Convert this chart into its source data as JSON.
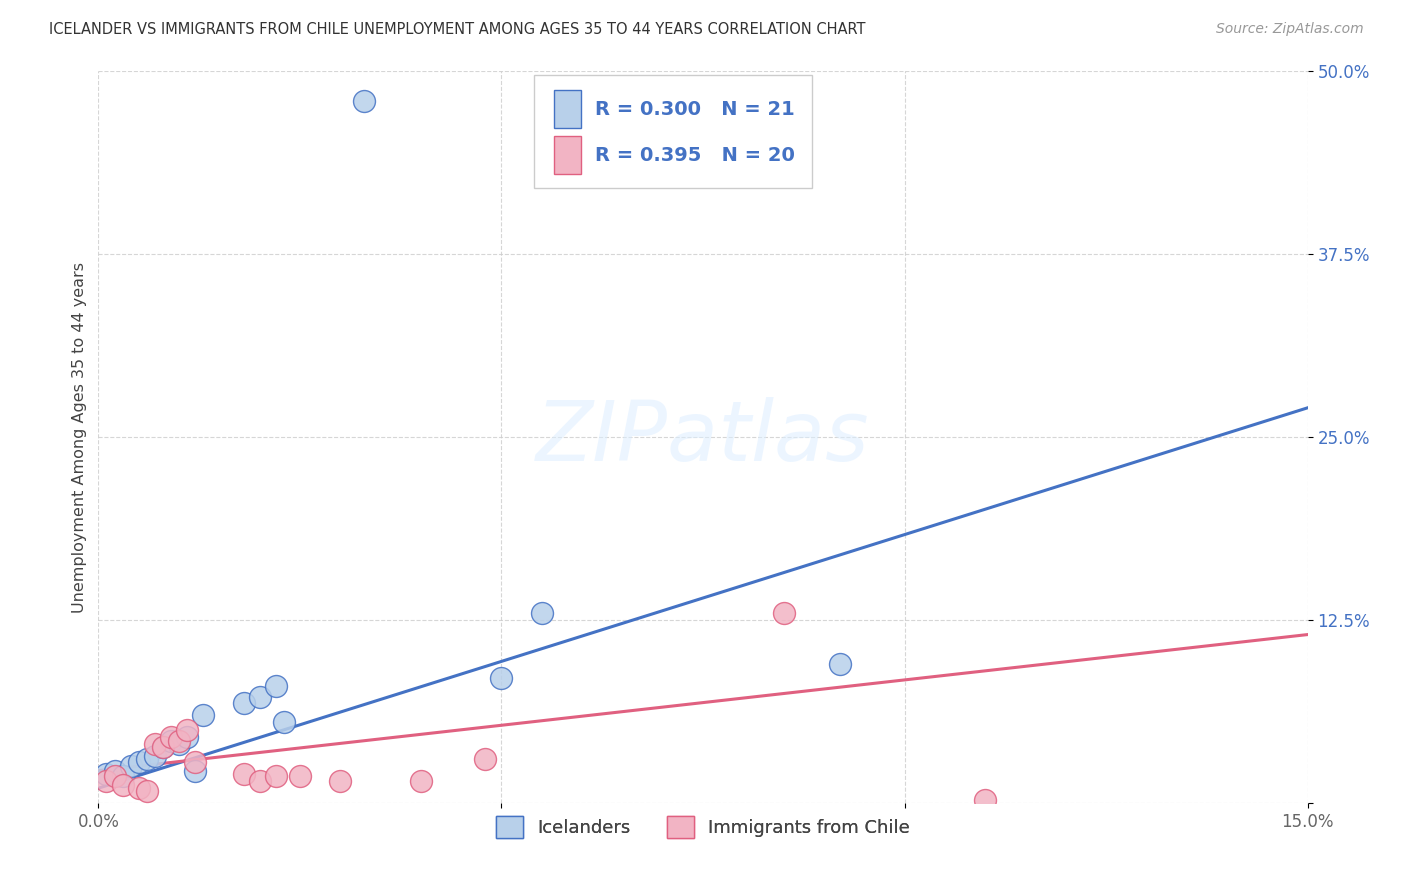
{
  "title": "ICELANDER VS IMMIGRANTS FROM CHILE UNEMPLOYMENT AMONG AGES 35 TO 44 YEARS CORRELATION CHART",
  "source": "Source: ZipAtlas.com",
  "ylabel": "Unemployment Among Ages 35 to 44 years",
  "xlim": [
    0.0,
    0.15
  ],
  "ylim": [
    0.0,
    0.5
  ],
  "background_color": "#ffffff",
  "watermark_text": "ZIPatlas",
  "legend_R1": "0.300",
  "legend_N1": "21",
  "legend_R2": "0.395",
  "legend_N2": "20",
  "legend_label1": "Icelanders",
  "legend_label2": "Immigrants from Chile",
  "series1_color": "#b8d0ea",
  "series2_color": "#f2b4c4",
  "line1_color": "#4472c4",
  "line2_color": "#e06080",
  "grid_color": "#cccccc",
  "tick_color_y": "#4472c4",
  "tick_color_x": "#666666",
  "series1_x": [
    0.001,
    0.002,
    0.003,
    0.004,
    0.005,
    0.006,
    0.007,
    0.008,
    0.009,
    0.01,
    0.011,
    0.012,
    0.013,
    0.018,
    0.02,
    0.022,
    0.023,
    0.033,
    0.05,
    0.055,
    0.092
  ],
  "series1_y": [
    0.02,
    0.022,
    0.018,
    0.025,
    0.028,
    0.03,
    0.032,
    0.038,
    0.042,
    0.04,
    0.045,
    0.022,
    0.06,
    0.068,
    0.072,
    0.08,
    0.055,
    0.48,
    0.085,
    0.13,
    0.095
  ],
  "series2_x": [
    0.001,
    0.002,
    0.003,
    0.005,
    0.006,
    0.007,
    0.008,
    0.009,
    0.01,
    0.011,
    0.012,
    0.018,
    0.02,
    0.022,
    0.025,
    0.03,
    0.04,
    0.048,
    0.085,
    0.11
  ],
  "series2_y": [
    0.015,
    0.018,
    0.012,
    0.01,
    0.008,
    0.04,
    0.038,
    0.045,
    0.042,
    0.05,
    0.028,
    0.02,
    0.015,
    0.018,
    0.018,
    0.015,
    0.015,
    0.03,
    0.13,
    0.002
  ],
  "line1_x0": 0.0,
  "line1_y0": 0.01,
  "line1_x1": 0.15,
  "line1_y1": 0.27,
  "line2_x0": 0.0,
  "line2_y0": 0.022,
  "line2_x1": 0.15,
  "line2_y1": 0.115
}
